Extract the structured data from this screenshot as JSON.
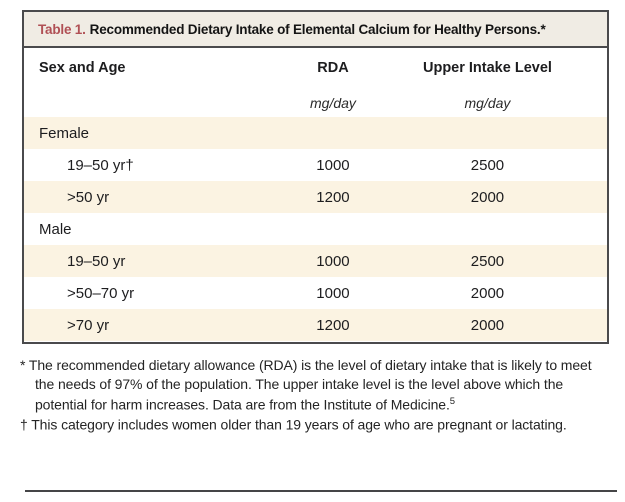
{
  "table": {
    "title_label": "Table 1.",
    "title_text": "Recommended Dietary Intake of Elemental Calcium for Healthy Persons.*",
    "columns": {
      "sex_age": "Sex and Age",
      "rda": "RDA",
      "upper": "Upper Intake Level"
    },
    "units": {
      "rda": "mg/day",
      "upper": "mg/day"
    },
    "rows": [
      {
        "label": "Female",
        "type": "section",
        "rda": "",
        "upper": ""
      },
      {
        "label": "19–50 yr†",
        "type": "data",
        "rda": "1000",
        "upper": "2500"
      },
      {
        "label": ">50 yr",
        "type": "data",
        "rda": "1200",
        "upper": "2000"
      },
      {
        "label": "Male",
        "type": "section",
        "rda": "",
        "upper": ""
      },
      {
        "label": "19–50 yr",
        "type": "data",
        "rda": "1000",
        "upper": "2500"
      },
      {
        "label": ">50–70 yr",
        "type": "data",
        "rda": "1000",
        "upper": "2000"
      },
      {
        "label": ">70 yr",
        "type": "data",
        "rda": "1200",
        "upper": "2000"
      }
    ]
  },
  "footnotes": [
    {
      "marker": "*",
      "text": "The recommended dietary allowance (RDA) is the level of dietary intake that is likely to meet the needs of 97% of the population. The upper intake level is the level above which the potential for harm increases. Data are from the Institute of Medicine.",
      "superscript": "5"
    },
    {
      "marker": "†",
      "text": "This category includes women older than 19 years of age who are pregnant or lactating.",
      "superscript": ""
    }
  ],
  "colors": {
    "accent_red": "#b05055",
    "title_bar_bg": "#f0ece4",
    "stripe_cream": "#fbf3e2",
    "border": "#4a4a4c"
  }
}
